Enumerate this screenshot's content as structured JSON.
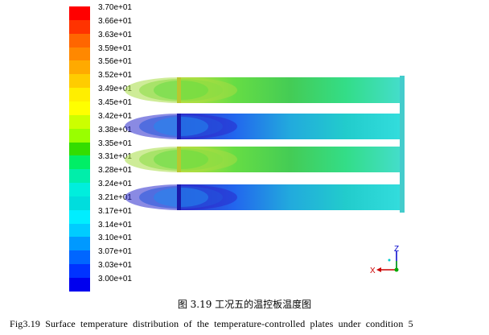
{
  "colorbar": {
    "labels": [
      "3.70e+01",
      "3.66e+01",
      "3.63e+01",
      "3.59e+01",
      "3.56e+01",
      "3.52e+01",
      "3.49e+01",
      "3.45e+01",
      "3.42e+01",
      "3.38e+01",
      "3.35e+01",
      "3.31e+01",
      "3.28e+01",
      "3.24e+01",
      "3.21e+01",
      "3.17e+01",
      "3.14e+01",
      "3.10e+01",
      "3.07e+01",
      "3.03e+01",
      "3.00e+01"
    ],
    "colors": [
      "#ff0000",
      "#ff3300",
      "#ff6600",
      "#ff8800",
      "#ffaa00",
      "#ffcc00",
      "#ffee00",
      "#ffff00",
      "#ccff00",
      "#99ff00",
      "#33dd00",
      "#00ee66",
      "#00eeaa",
      "#00eedd",
      "#00dddd",
      "#00eeff",
      "#00ccff",
      "#0099ff",
      "#0066ff",
      "#0033ff",
      "#0000ee"
    ]
  },
  "plates": [
    {
      "colors": [
        "#c8e040",
        "#66dd44",
        "#44cc55",
        "#33dd88",
        "#44ddcc"
      ]
    },
    {
      "colors": [
        "#3333cc",
        "#2266ee",
        "#22aadd",
        "#22cccc",
        "#33dddd"
      ]
    },
    {
      "colors": [
        "#c8e040",
        "#66dd44",
        "#44cc55",
        "#33dd88",
        "#44ddcc"
      ]
    },
    {
      "colors": [
        "#3333cc",
        "#2266ee",
        "#22aadd",
        "#22cccc",
        "#33dddd"
      ]
    }
  ],
  "axis_triad": {
    "x_label": "X",
    "z_label": "Z"
  },
  "caption_cn": "图 3.19    工况五的温控板温度图",
  "caption_en": "Fig3.19    Surface temperature distribution of the temperature-controlled plates under condition 5"
}
